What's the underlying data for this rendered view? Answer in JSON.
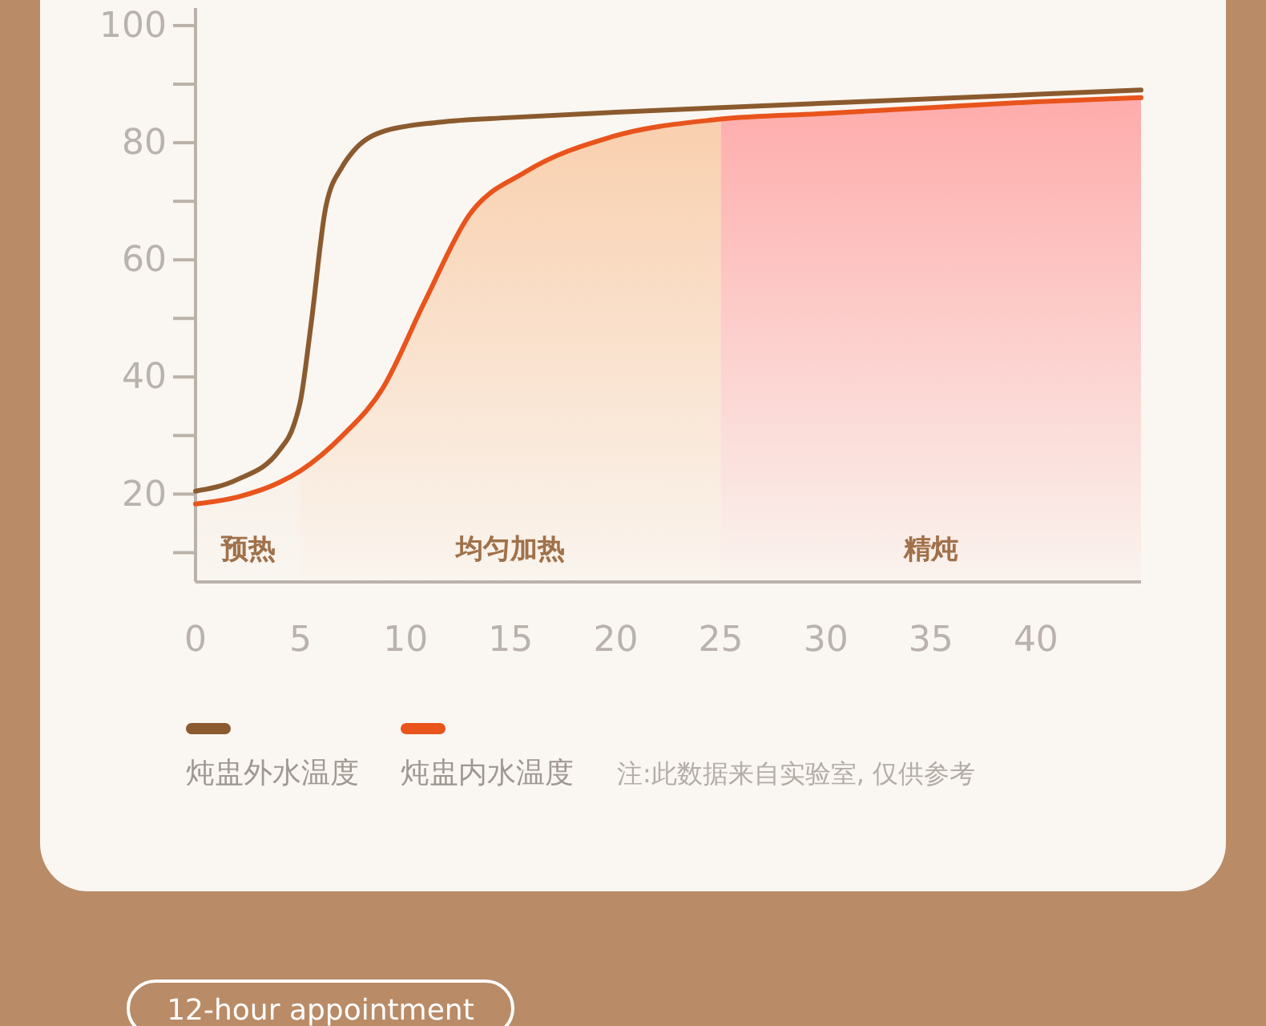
{
  "chart_data": {
    "type": "line",
    "xlim": [
      0,
      45
    ],
    "xticks": [
      0,
      5,
      10,
      15,
      20,
      25,
      30,
      35,
      40
    ],
    "ylim": [
      5,
      103
    ],
    "yticks": [
      {
        "value": 10,
        "label": null
      },
      20,
      {
        "value": 30,
        "label": null
      },
      40,
      {
        "value": 50,
        "label": null
      },
      60,
      {
        "value": 70,
        "label": null
      },
      80,
      {
        "value": 90,
        "label": null
      },
      100
    ],
    "series": [
      {
        "name": "炖盅外水温度",
        "color": "#8b5a2e",
        "x": [
          0,
          2,
          4,
          4.7,
          5,
          5.5,
          6.2,
          7,
          7.5,
          9,
          11.6,
          15,
          20,
          25,
          35,
          45
        ],
        "values": [
          20.5,
          22.5,
          27.5,
          32,
          36,
          49,
          69,
          76,
          78.5,
          82,
          83.5,
          84.3,
          85.2,
          86,
          87.5,
          89
        ]
      },
      {
        "name": "炖盅内水温度",
        "color": "#e8541c",
        "x": [
          0,
          2,
          4,
          5,
          7,
          8.9,
          10.9,
          13,
          15.7,
          19.8,
          24.9,
          30,
          35,
          40,
          45
        ],
        "values": [
          18.3,
          19.5,
          22,
          24,
          30,
          38,
          52.8,
          67.5,
          75,
          81,
          84,
          85,
          86,
          87,
          87.7
        ]
      }
    ],
    "bands": [
      {
        "axis": "x",
        "from": 0,
        "to": 5,
        "label": "预热",
        "color": "#f0ddcc"
      },
      {
        "axis": "x",
        "from": 5,
        "to": 25,
        "label": "均匀加热",
        "color": "#f9c49a"
      },
      {
        "axis": "x",
        "from": 25,
        "to": 45,
        "label": "精炖",
        "color": "#ff9a9a"
      }
    ],
    "legend": "bottom left",
    "grid": false,
    "line_style": "solid",
    "marker": "none",
    "annotations": [
      "注:此数据来自实验室, 仅供参考",
      "12-hour appointment"
    ]
  }
}
